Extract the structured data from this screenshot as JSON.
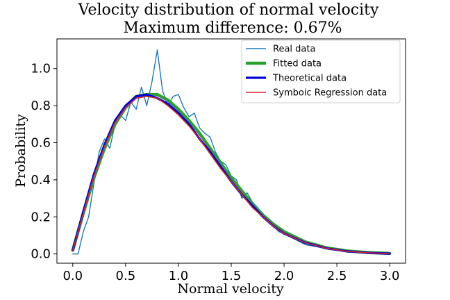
{
  "chart_data": {
    "type": "line",
    "title": "Velocity distribution of normal velocity",
    "subtitle": "Maximum difference: 0.67%",
    "xlabel": "Normal velocity",
    "ylabel": "Probability",
    "xlim": [
      -0.15,
      3.15
    ],
    "ylim": [
      -0.05,
      1.16
    ],
    "xticks": [
      0.0,
      0.5,
      1.0,
      1.5,
      2.0,
      2.5,
      3.0
    ],
    "yticks": [
      0.0,
      0.2,
      0.4,
      0.6,
      0.8,
      1.0
    ],
    "xtick_labels": [
      "0.0",
      "0.5",
      "1.0",
      "1.5",
      "2.0",
      "2.5",
      "3.0"
    ],
    "ytick_labels": [
      "0.0",
      "0.2",
      "0.4",
      "0.6",
      "0.8",
      "1.0"
    ],
    "grid": false,
    "legend_position": "top-right",
    "series": [
      {
        "name": "Real data",
        "color": "#1f77b4",
        "x": [
          0.0,
          0.05,
          0.1,
          0.15,
          0.2,
          0.25,
          0.3,
          0.35,
          0.4,
          0.45,
          0.5,
          0.55,
          0.6,
          0.65,
          0.7,
          0.75,
          0.8,
          0.85,
          0.9,
          0.95,
          1.0,
          1.05,
          1.1,
          1.15,
          1.2,
          1.25,
          1.3,
          1.35,
          1.4,
          1.45,
          1.5,
          1.55,
          1.6,
          1.65,
          1.7,
          1.75,
          1.8,
          1.85,
          1.9,
          1.95,
          2.0,
          2.1,
          2.2,
          2.3,
          2.4,
          2.5,
          2.6,
          2.7,
          2.8,
          2.9,
          3.0
        ],
        "values": [
          0.0,
          0.0,
          0.12,
          0.2,
          0.38,
          0.55,
          0.62,
          0.57,
          0.7,
          0.75,
          0.72,
          0.82,
          0.78,
          0.9,
          0.8,
          0.93,
          1.1,
          0.88,
          0.8,
          0.85,
          0.86,
          0.79,
          0.74,
          0.76,
          0.68,
          0.65,
          0.63,
          0.55,
          0.5,
          0.48,
          0.42,
          0.4,
          0.3,
          0.33,
          0.28,
          0.25,
          0.2,
          0.18,
          0.15,
          0.12,
          0.11,
          0.08,
          0.05,
          0.04,
          0.03,
          0.02,
          0.01,
          0.01,
          0.01,
          0.005,
          0.0
        ]
      },
      {
        "name": "Fitted data",
        "color": "#2ca02c",
        "x": [
          0.0,
          0.1,
          0.2,
          0.3,
          0.4,
          0.5,
          0.6,
          0.7,
          0.8,
          0.9,
          1.0,
          1.1,
          1.2,
          1.3,
          1.4,
          1.5,
          1.6,
          1.7,
          1.8,
          1.9,
          2.0,
          2.2,
          2.4,
          2.6,
          2.8,
          3.0
        ],
        "values": [
          0.02,
          0.22,
          0.41,
          0.57,
          0.7,
          0.79,
          0.85,
          0.86,
          0.86,
          0.83,
          0.78,
          0.72,
          0.65,
          0.57,
          0.49,
          0.41,
          0.34,
          0.27,
          0.21,
          0.16,
          0.12,
          0.065,
          0.033,
          0.016,
          0.007,
          0.003
        ]
      },
      {
        "name": "Theoretical data",
        "color": "#0000dd",
        "x": [
          0.0,
          0.1,
          0.2,
          0.3,
          0.4,
          0.5,
          0.6,
          0.7,
          0.8,
          0.9,
          1.0,
          1.1,
          1.2,
          1.3,
          1.4,
          1.5,
          1.6,
          1.7,
          1.8,
          1.9,
          2.0,
          2.2,
          2.4,
          2.6,
          2.8,
          3.0
        ],
        "values": [
          0.02,
          0.23,
          0.43,
          0.59,
          0.72,
          0.8,
          0.85,
          0.86,
          0.84,
          0.81,
          0.76,
          0.7,
          0.62,
          0.55,
          0.47,
          0.39,
          0.32,
          0.26,
          0.2,
          0.15,
          0.11,
          0.06,
          0.03,
          0.014,
          0.006,
          0.002
        ]
      },
      {
        "name": "Symboic Regression data",
        "color": "#d62728",
        "x": [
          0.0,
          0.1,
          0.2,
          0.3,
          0.4,
          0.5,
          0.6,
          0.7,
          0.8,
          0.9,
          1.0,
          1.1,
          1.2,
          1.3,
          1.4,
          1.5,
          1.6,
          1.7,
          1.8,
          1.9,
          2.0,
          2.2,
          2.4,
          2.6,
          2.8,
          3.0
        ],
        "values": [
          0.02,
          0.22,
          0.42,
          0.58,
          0.71,
          0.79,
          0.84,
          0.85,
          0.84,
          0.8,
          0.75,
          0.69,
          0.62,
          0.54,
          0.46,
          0.39,
          0.32,
          0.25,
          0.2,
          0.15,
          0.11,
          0.06,
          0.03,
          0.014,
          0.006,
          0.002
        ]
      }
    ]
  }
}
